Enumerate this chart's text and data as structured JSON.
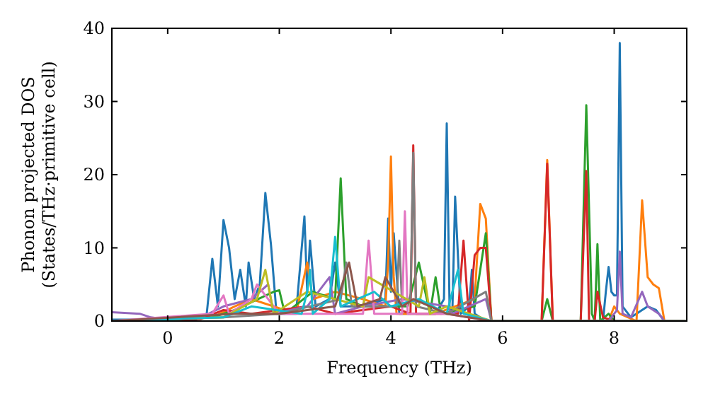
{
  "chart_data": {
    "type": "line",
    "xlabel": "Frequency (THz)",
    "ylabel": "Phonon projected DOS\n(States/THz·primitive cell)",
    "xlim": [
      -1,
      9.3
    ],
    "ylim": [
      0,
      40
    ],
    "xticks": [
      0,
      2,
      4,
      6,
      8
    ],
    "yticks": [
      0,
      10,
      20,
      30,
      40
    ],
    "grid": false,
    "marker": "none",
    "line_style": "solid",
    "series": [
      {
        "color": "#1f77b4",
        "x": [
          -1,
          0.5,
          0.7,
          0.8,
          0.9,
          1.0,
          1.1,
          1.2,
          1.3,
          1.4,
          1.45,
          1.55,
          1.65,
          1.75,
          1.85,
          1.95,
          2.3,
          2.45,
          2.5,
          2.55,
          2.65,
          2.9,
          3.0,
          3.1,
          3.5,
          3.9,
          3.95,
          4.0,
          4.05,
          4.15,
          4.8,
          4.95,
          5.0,
          5.05,
          5.1,
          5.15,
          5.25,
          5.4,
          5.45,
          5.5,
          5.7,
          7.8,
          7.85,
          7.9,
          7.95,
          8.0,
          8.05,
          8.1,
          8.15,
          8.3,
          8.6,
          8.75,
          8.9
        ],
        "values": [
          0.2,
          0.2,
          1,
          8.5,
          2,
          13.8,
          10,
          3,
          7,
          2,
          8,
          3,
          5,
          17.5,
          10.5,
          1,
          1,
          14.3,
          4,
          11,
          2,
          3,
          8,
          2,
          2,
          3,
          14,
          4,
          12,
          1,
          1,
          3,
          27,
          2,
          1,
          17,
          1,
          2,
          7,
          1,
          0,
          0,
          4,
          7.4,
          4,
          3.5,
          3.5,
          38,
          2,
          0.5,
          2,
          1.5,
          0
        ]
      },
      {
        "color": "#ff7f0e",
        "x": [
          -1,
          0.8,
          1.2,
          1.5,
          2.3,
          2.5,
          2.6,
          3.0,
          3.5,
          3.9,
          3.95,
          4.0,
          4.05,
          4.1,
          4.8,
          5.5,
          5.6,
          5.7,
          5.8,
          6.7,
          6.8,
          6.9,
          7.9,
          8.0,
          8.1,
          8.4,
          8.5,
          8.6,
          8.7,
          8.8,
          8.9,
          9.3
        ],
        "values": [
          0,
          0.5,
          2,
          3,
          1,
          8,
          3,
          4,
          3,
          2,
          8,
          22.5,
          6,
          1,
          1,
          3,
          16,
          14,
          0,
          0,
          22,
          0,
          0,
          2,
          1,
          0,
          16.5,
          6,
          5,
          4.5,
          0,
          0
        ]
      },
      {
        "color": "#2ca02c",
        "x": [
          -1,
          0.8,
          1.2,
          1.9,
          2.0,
          2.1,
          2.6,
          3.0,
          3.1,
          3.2,
          3.5,
          4.3,
          4.5,
          4.7,
          4.8,
          4.9,
          5.5,
          5.7,
          5.8,
          6.7,
          6.8,
          6.9,
          7.4,
          7.5,
          7.6,
          7.65,
          7.7,
          7.75,
          7.9,
          8.0,
          9.3
        ],
        "values": [
          0,
          0.5,
          1.5,
          4,
          4.2,
          1,
          4,
          3,
          19.5,
          3,
          2,
          2,
          8,
          1,
          6,
          1,
          2,
          12,
          0,
          0,
          3,
          0,
          0,
          29.5,
          1,
          0,
          10.5,
          0,
          1,
          0,
          0
        ]
      },
      {
        "color": "#d62728",
        "x": [
          -1,
          0.6,
          1.0,
          1.5,
          2.0,
          2.5,
          3.0,
          3.5,
          4.0,
          4.35,
          4.4,
          4.45,
          4.9,
          5.2,
          5.3,
          5.4,
          5.5,
          5.6,
          5.7,
          5.8,
          6.7,
          6.8,
          6.9,
          7.4,
          7.5,
          7.55,
          7.65,
          7.7,
          7.8,
          8.0,
          9.3
        ],
        "values": [
          0,
          0.3,
          1.5,
          1,
          1.5,
          2,
          1,
          1.5,
          2,
          1,
          24,
          1,
          1,
          1,
          11,
          0,
          9,
          10,
          10,
          0,
          0,
          21.5,
          0,
          0,
          20.5,
          0,
          0,
          4,
          0.5,
          0,
          0
        ]
      },
      {
        "color": "#9467bd",
        "x": [
          -1,
          -0.5,
          -0.3,
          0,
          0.6,
          1.0,
          1.5,
          1.8,
          1.9,
          2.5,
          2.9,
          3.0,
          3.5,
          4.2,
          5.0,
          5.1,
          5.7,
          5.8,
          7.9,
          8.0,
          8.05,
          8.1,
          8.15,
          8.3,
          8.5,
          8.6,
          8.8,
          8.9,
          9.3
        ],
        "values": [
          1.2,
          1,
          0.5,
          0.2,
          0.5,
          2,
          3,
          5,
          1,
          2,
          6,
          1,
          2,
          3,
          2,
          1,
          3,
          0,
          0,
          1,
          1.5,
          9.5,
          1,
          0.5,
          4,
          2,
          1,
          0,
          0
        ]
      },
      {
        "color": "#7f7f7f",
        "x": [
          -1,
          1.0,
          2.0,
          3.1,
          3.2,
          3.3,
          4.1,
          4.15,
          4.2,
          4.35,
          4.4,
          4.45,
          5.0,
          5.7,
          5.8,
          9.3
        ],
        "values": [
          0,
          0.5,
          1,
          3,
          8,
          2,
          2,
          11,
          2,
          3,
          23,
          2,
          1,
          4,
          0,
          0
        ]
      },
      {
        "color": "#e377c2",
        "x": [
          -1,
          0.8,
          1.0,
          1.1,
          1.5,
          1.6,
          2.0,
          3.5,
          3.6,
          3.7,
          4.2,
          4.25,
          4.3,
          5.0,
          5.8,
          9.3
        ],
        "values": [
          0,
          1,
          3.5,
          1,
          3,
          5,
          1,
          1,
          11,
          1,
          1,
          15,
          1,
          1,
          0,
          0
        ]
      },
      {
        "color": "#bcbd22",
        "x": [
          -1,
          1.0,
          1.6,
          1.75,
          1.9,
          2.5,
          3.5,
          3.6,
          4.5,
          4.6,
          4.7,
          5.0,
          5.8,
          9.3
        ],
        "values": [
          0,
          0.5,
          3,
          7,
          1,
          4,
          2,
          6,
          2,
          6,
          1,
          2,
          0,
          0
        ]
      },
      {
        "color": "#17becf",
        "x": [
          -1,
          1.0,
          1.5,
          2.4,
          2.5,
          2.55,
          2.6,
          2.9,
          3.0,
          3.1,
          3.7,
          4.0,
          4.5,
          5.0,
          5.2,
          5.3,
          5.8,
          9.3
        ],
        "values": [
          0,
          0.5,
          2,
          1,
          4,
          7,
          1,
          3,
          11.5,
          2,
          4,
          2,
          3,
          1,
          7,
          1,
          0,
          0
        ]
      },
      {
        "color": "#8c564b",
        "x": [
          -1,
          1.2,
          2.0,
          3.0,
          3.25,
          3.4,
          3.8,
          3.9,
          4.2,
          4.4,
          5.0,
          5.8,
          9.3
        ],
        "values": [
          0,
          1,
          1,
          2,
          8,
          2,
          3,
          6,
          2,
          3,
          1,
          0,
          0
        ]
      }
    ]
  }
}
